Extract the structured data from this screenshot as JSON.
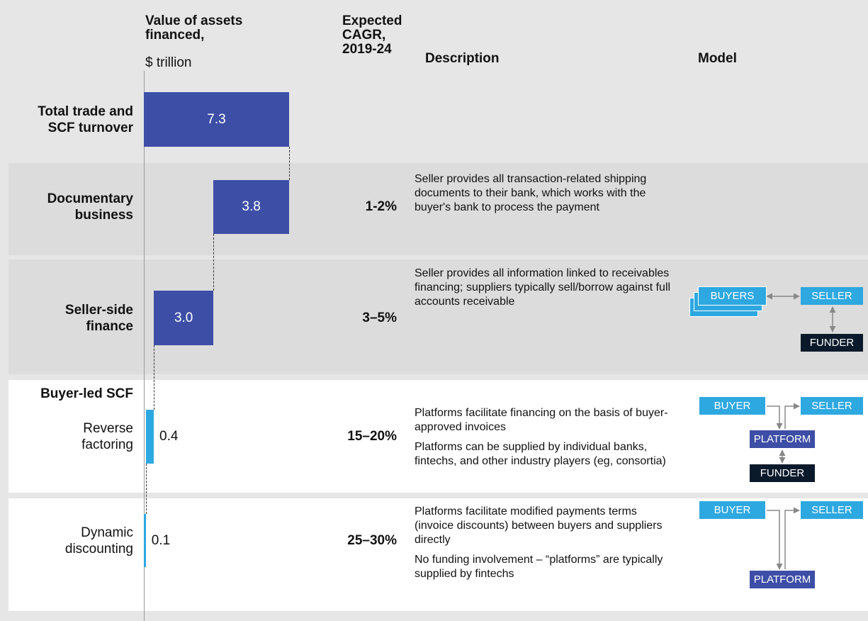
{
  "chart_data": {
    "type": "waterfall",
    "value_title": "Value of assets financed,",
    "unit": "$ trillion",
    "cagr_title": "Expected CAGR, 2019-24",
    "description_title": "Description",
    "model_title": "Model",
    "group_label": "Buyer-led SCF",
    "categories": [
      "Total trade and SCF turnover",
      "Documentary business",
      "Seller-side finance",
      "Reverse factoring",
      "Dynamic discounting"
    ],
    "values": [
      7.3,
      3.8,
      3.0,
      0.4,
      0.1
    ],
    "value_labels": [
      "7.3",
      "3.8",
      "3.0",
      "0.4",
      "0.1"
    ],
    "colors": [
      "#3d4ea6",
      "#3d4ea6",
      "#3d4ea6",
      "#2ea8e0",
      "#2ea8e0"
    ],
    "xlim": [
      0,
      7.3
    ],
    "cagr": [
      null,
      "1-2%",
      "3–5%",
      "15–20%",
      "25–30%"
    ],
    "descriptions": [
      null,
      [
        "Seller provides all transaction-related shipping documents to their bank, which works with the buyer's bank to process the payment"
      ],
      [
        "Seller provides all information linked to receivables financing; suppliers typically sell/borrow against full accounts receivable"
      ],
      [
        "Platforms facilitate financing on the basis of buyer-approved invoices",
        "Platforms can be supplied by individual banks, fintechs, and other industry players (eg, consortia)"
      ],
      [
        "Platforms facilitate modified payments terms (invoice discounts) between buyers and suppliers directly",
        "No funding involvement – “platforms” are typically supplied by fintechs"
      ]
    ],
    "models": [
      null,
      null,
      [
        "BUYERS",
        "SELLER",
        "FUNDER"
      ],
      [
        "BUYER",
        "SELLER",
        "PLATFORM",
        "FUNDER"
      ],
      [
        "BUYER",
        "SELLER",
        "PLATFORM"
      ]
    ]
  }
}
